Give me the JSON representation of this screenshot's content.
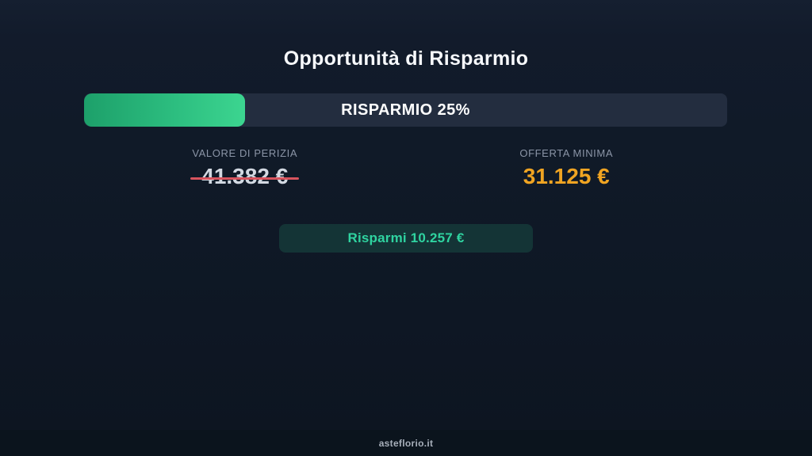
{
  "page": {
    "title": "Opportunità di Risparmio",
    "footer": "asteflorio.it"
  },
  "progress": {
    "label": "RISPARMIO 25%",
    "percent": 25
  },
  "values": {
    "perizia": {
      "label": "VALORE DI PERIZIA",
      "amount": "41.382 €"
    },
    "offerta": {
      "label": "OFFERTA MINIMA",
      "amount": "31.125 €"
    }
  },
  "savings": {
    "label": "Risparmi 10.257 €"
  },
  "colors": {
    "background_top": "#151f30",
    "background_bottom": "#0c1520",
    "bar_track": "#232d3f",
    "fill_gradient_start": "#1da06a",
    "fill_gradient_end": "#3cd590",
    "perizia_text": "#d3d9e2",
    "strike_red": "#d8545e",
    "offerta_orange": "#f0a422",
    "badge_background": "#143436",
    "badge_green": "#2fd3a0",
    "label_gray": "#8b95a7"
  }
}
